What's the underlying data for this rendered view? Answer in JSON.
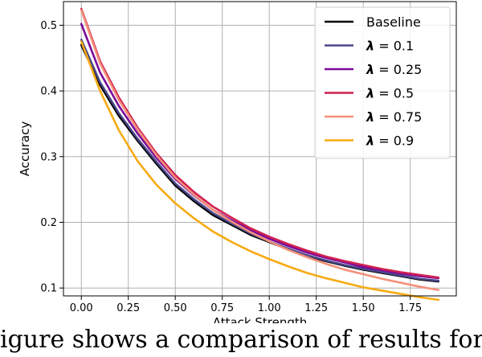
{
  "caption_fragment": "igure shows a comparison of results for FGSM on the fashion",
  "chart_data": {
    "type": "line",
    "xlabel": "Attack Strength",
    "ylabel": "Accuracy",
    "xlim": [
      -0.095,
      1.995
    ],
    "ylim": [
      0.088,
      0.536
    ],
    "xticks": [
      0.0,
      0.25,
      0.5,
      0.75,
      1.0,
      1.25,
      1.5,
      1.75
    ],
    "xtick_labels": [
      "0.00",
      "0.25",
      "0.50",
      "0.75",
      "1.00",
      "1.25",
      "1.50",
      "1.75"
    ],
    "yticks": [
      0.1,
      0.2,
      0.3,
      0.4,
      0.5
    ],
    "ytick_labels": [
      "0.1",
      "0.2",
      "0.3",
      "0.4",
      "0.5"
    ],
    "grid": true,
    "legend_position": "top-right",
    "x": [
      0.0,
      0.1,
      0.2,
      0.3,
      0.4,
      0.5,
      0.6,
      0.7,
      0.8,
      0.9,
      1.0,
      1.1,
      1.2,
      1.3,
      1.4,
      1.5,
      1.6,
      1.7,
      1.8,
      1.9
    ],
    "series": [
      {
        "name": "Baseline",
        "legend_prefix": "",
        "legend_value": "Baseline",
        "color": "#000000",
        "values": [
          0.47,
          0.409,
          0.362,
          0.324,
          0.289,
          0.256,
          0.232,
          0.211,
          0.196,
          0.181,
          0.17,
          0.159,
          0.149,
          0.141,
          0.134,
          0.128,
          0.123,
          0.118,
          0.113,
          0.11
        ]
      },
      {
        "name": "λ = 0.1",
        "legend_prefix": "λ",
        "legend_value": " = 0.1",
        "color": "#4a4687",
        "values": [
          0.478,
          0.413,
          0.366,
          0.327,
          0.292,
          0.259,
          0.235,
          0.214,
          0.198,
          0.183,
          0.171,
          0.16,
          0.15,
          0.142,
          0.135,
          0.129,
          0.124,
          0.119,
          0.114,
          0.111
        ]
      },
      {
        "name": "λ = 0.25",
        "legend_prefix": "λ",
        "legend_value": " = 0.25",
        "color": "#7a0a9c",
        "values": [
          0.502,
          0.428,
          0.377,
          0.335,
          0.298,
          0.266,
          0.241,
          0.219,
          0.203,
          0.188,
          0.175,
          0.164,
          0.154,
          0.146,
          0.139,
          0.132,
          0.127,
          0.122,
          0.118,
          0.115
        ]
      },
      {
        "name": "λ = 0.5",
        "legend_prefix": "λ",
        "legend_value": " = 0.5",
        "color": "#d12050",
        "values": [
          0.525,
          0.445,
          0.39,
          0.344,
          0.305,
          0.272,
          0.246,
          0.224,
          0.207,
          0.191,
          0.178,
          0.167,
          0.157,
          0.148,
          0.141,
          0.135,
          0.129,
          0.124,
          0.12,
          0.116
        ]
      },
      {
        "name": "λ = 0.75",
        "legend_prefix": "λ",
        "legend_value": " = 0.75",
        "color": "#f4907a",
        "values": [
          0.523,
          0.442,
          0.386,
          0.341,
          0.302,
          0.268,
          0.242,
          0.219,
          0.201,
          0.185,
          0.171,
          0.158,
          0.147,
          0.137,
          0.128,
          0.121,
          0.114,
          0.108,
          0.102,
          0.097
        ]
      },
      {
        "name": "λ = 0.9",
        "legend_prefix": "λ",
        "legend_value": " = 0.9",
        "color": "#f7aa14",
        "values": [
          0.475,
          0.4,
          0.34,
          0.293,
          0.257,
          0.229,
          0.206,
          0.186,
          0.17,
          0.156,
          0.144,
          0.133,
          0.123,
          0.115,
          0.108,
          0.101,
          0.096,
          0.091,
          0.086,
          0.082
        ]
      }
    ]
  }
}
